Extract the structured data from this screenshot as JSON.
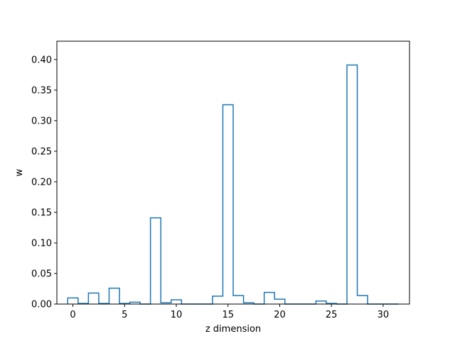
{
  "chart_data": {
    "type": "bar",
    "style": "step-histogram",
    "xlabel": "z dimension",
    "ylabel": "w",
    "xlim": [
      -1.55,
      32.55
    ],
    "ylim": [
      0,
      0.43
    ],
    "x_ticks": [
      0,
      5,
      10,
      15,
      20,
      25,
      30
    ],
    "y_ticks": [
      0.0,
      0.05,
      0.1,
      0.15,
      0.2,
      0.25,
      0.3,
      0.35,
      0.4
    ],
    "y_tick_labels": [
      "0.00",
      "0.05",
      "0.10",
      "0.15",
      "0.20",
      "0.25",
      "0.30",
      "0.35",
      "0.40"
    ],
    "color": "#1f77b4",
    "grid": false,
    "categories": [
      0,
      1,
      2,
      3,
      4,
      5,
      6,
      7,
      8,
      9,
      10,
      11,
      12,
      13,
      14,
      15,
      16,
      17,
      18,
      19,
      20,
      21,
      22,
      23,
      24,
      25,
      26,
      27,
      28,
      29,
      30,
      31
    ],
    "values": [
      0.01,
      0.001,
      0.018,
      0.001,
      0.026,
      0.001,
      0.003,
      0.0,
      0.141,
      0.002,
      0.007,
      0.0,
      0.0,
      0.0,
      0.013,
      0.326,
      0.014,
      0.002,
      0.0,
      0.019,
      0.008,
      0.0,
      0.0,
      0.0,
      0.005,
      0.001,
      0.0,
      0.391,
      0.014,
      0.0,
      0.0,
      0.0
    ]
  }
}
